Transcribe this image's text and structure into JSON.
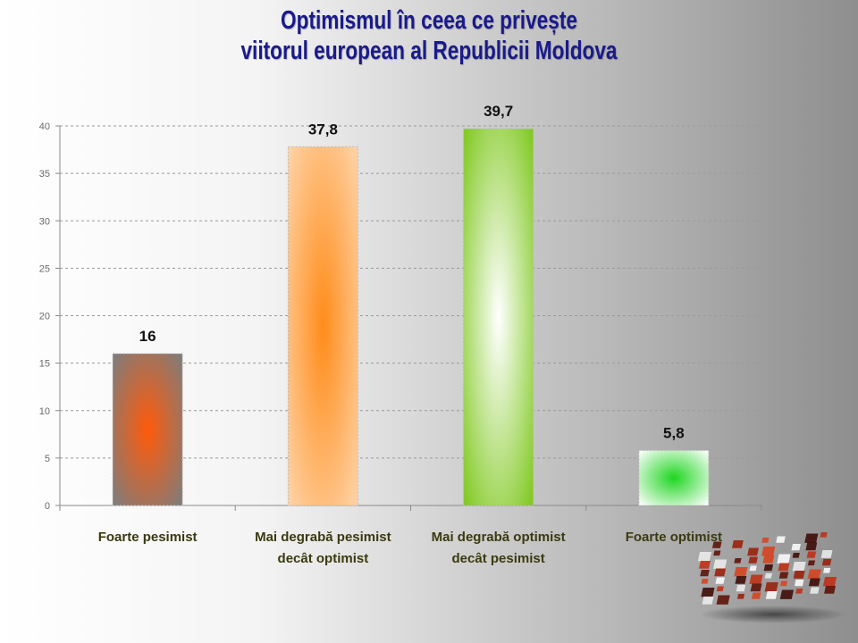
{
  "title_lines": [
    "Optimismul în ceea ce privește",
    "viitorul european al Republicii Moldova"
  ],
  "chart_data": {
    "type": "bar",
    "categories": [
      [
        "Foarte pesimist"
      ],
      [
        "Mai degrabă pesimist",
        "decât optimist"
      ],
      [
        "Mai degrabă optimist",
        "decât pesimist"
      ],
      [
        "Foarte optimist"
      ]
    ],
    "values": [
      16,
      37.8,
      39.7,
      5.8
    ],
    "value_labels": [
      "16",
      "37,8",
      "39,7",
      "5,8"
    ],
    "ylim": [
      0,
      40
    ],
    "yticks": [
      0,
      5,
      10,
      15,
      20,
      25,
      30,
      35,
      40
    ],
    "grid": true,
    "bar_colors": [
      {
        "edge": "#7d7d7d",
        "center": "#ff5a0a"
      },
      {
        "edge": "#ffd4a8",
        "center": "#ff8c1a"
      },
      {
        "edge": "#7fc81e",
        "center": "#ffffff"
      },
      {
        "edge": "#ffffff",
        "center": "#1fd620"
      }
    ],
    "axis_label_color": "#3a3a10"
  }
}
